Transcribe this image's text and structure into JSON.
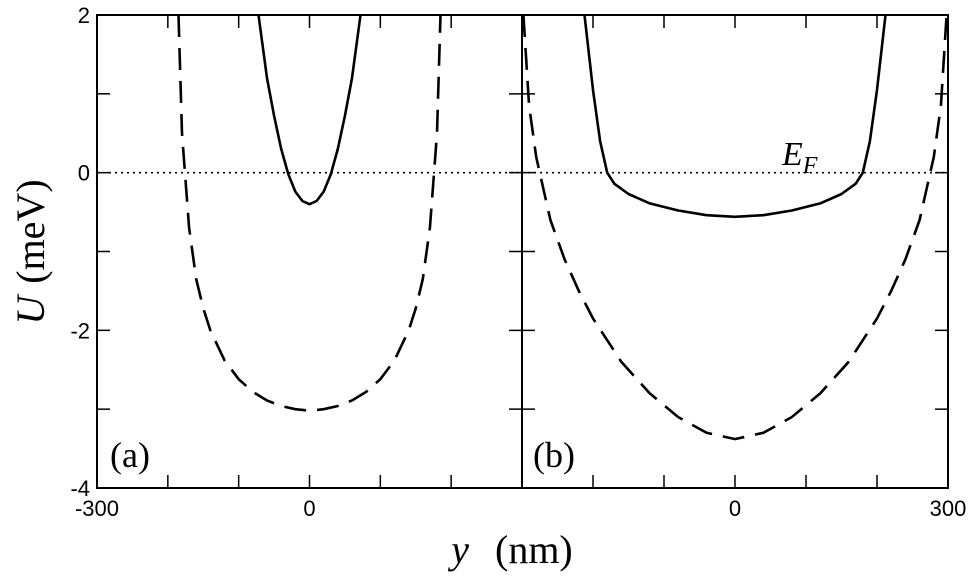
{
  "chart_data": {
    "type": "line",
    "xlabel_var": "y",
    "xlabel_unit": "(nm)",
    "ylabel_var": "U",
    "ylabel_unit": "(meV)",
    "ylim": [
      -4,
      2
    ],
    "yticks": [
      "2",
      "0",
      "-2",
      "-4"
    ],
    "y_minor_ticks": [
      1,
      -1,
      -3
    ],
    "annotation": {
      "main": "E",
      "sub": "F",
      "x": 100,
      "y": 0
    },
    "panels": [
      {
        "label": "(a)",
        "xlim": [
          -300,
          300
        ],
        "xticks_labeled": [
          {
            "v": -300,
            "t": "-300"
          },
          {
            "v": 0,
            "t": "0"
          }
        ],
        "x_minor_ticks": [
          -200,
          -100,
          100,
          200
        ],
        "series": [
          {
            "style": "solid",
            "x": [
              -72,
              -60,
              -50,
              -40,
              -30,
              -20,
              -10,
              0,
              10,
              20,
              30,
              40,
              50,
              60,
              72
            ],
            "y": [
              2.0,
              1.2,
              0.72,
              0.3,
              -0.02,
              -0.24,
              -0.36,
              -0.4,
              -0.36,
              -0.24,
              -0.02,
              0.3,
              0.72,
              1.2,
              2.0
            ]
          },
          {
            "style": "dashed",
            "x": [
              -185,
              -180,
              -170,
              -160,
              -150,
              -140,
              -120,
              -100,
              -80,
              -60,
              -40,
              -20,
              0,
              20,
              40,
              60,
              80,
              100,
              120,
              140,
              150,
              160,
              170,
              180,
              185
            ],
            "y": [
              2.0,
              0.5,
              -0.7,
              -1.35,
              -1.72,
              -2.0,
              -2.38,
              -2.62,
              -2.78,
              -2.89,
              -2.96,
              -3.0,
              -3.02,
              -3.0,
              -2.96,
              -2.89,
              -2.78,
              -2.62,
              -2.38,
              -2.0,
              -1.72,
              -1.35,
              -0.7,
              0.5,
              2.0
            ]
          },
          {
            "style": "dotted",
            "x": [
              -300,
              300
            ],
            "y": [
              0,
              0
            ]
          }
        ]
      },
      {
        "label": "(b)",
        "xlim": [
          -300,
          300
        ],
        "xticks_labeled": [
          {
            "v": 0,
            "t": "0"
          },
          {
            "v": 300,
            "t": "300"
          }
        ],
        "x_minor_ticks": [
          -200,
          -100,
          100,
          200
        ],
        "series": [
          {
            "style": "solid",
            "x": [
              -212,
              -200,
              -190,
              -180,
              -170,
              -150,
              -120,
              -80,
              -40,
              0,
              40,
              80,
              120,
              150,
              170,
              180,
              190,
              200,
              212
            ],
            "y": [
              2.0,
              1.05,
              0.4,
              0.0,
              -0.14,
              -0.27,
              -0.39,
              -0.48,
              -0.54,
              -0.56,
              -0.54,
              -0.48,
              -0.39,
              -0.27,
              -0.14,
              0.0,
              0.4,
              1.05,
              2.0
            ]
          },
          {
            "style": "dashed",
            "x": [
              -298,
              -290,
              -280,
              -260,
              -240,
              -220,
              -200,
              -160,
              -120,
              -80,
              -40,
              0,
              40,
              80,
              120,
              160,
              200,
              220,
              240,
              260,
              280,
              290,
              298
            ],
            "y": [
              2.0,
              0.85,
              0.2,
              -0.6,
              -1.1,
              -1.5,
              -1.85,
              -2.4,
              -2.8,
              -3.1,
              -3.3,
              -3.38,
              -3.3,
              -3.1,
              -2.8,
              -2.4,
              -1.85,
              -1.5,
              -1.1,
              -0.6,
              0.2,
              0.85,
              2.0
            ]
          },
          {
            "style": "dotted",
            "x": [
              -300,
              300
            ],
            "y": [
              0,
              0
            ]
          }
        ]
      }
    ]
  }
}
